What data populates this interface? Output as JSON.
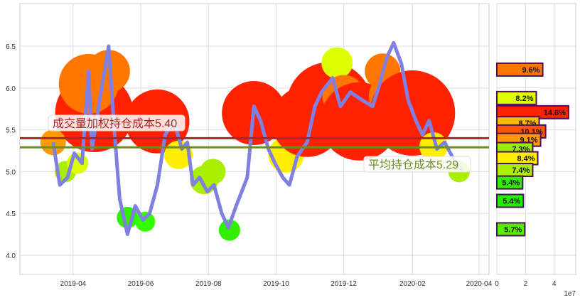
{
  "chart_data": [
    {
      "type": "line",
      "panel": "price",
      "ylim": [
        3.77,
        7.01
      ],
      "xlim": [
        "2019-02-12",
        "2020-04-10"
      ],
      "grid": true,
      "yticks": [
        "4.0",
        "4.5",
        "5.0",
        "5.5",
        "6.0",
        "6.5"
      ],
      "xticks": [
        "2019-04",
        "2019-06",
        "2019-08",
        "2019-10",
        "2019-12",
        "2020-02",
        "2020-04"
      ],
      "line_color": "#8080e0",
      "series": [
        {
          "x": [
            "2019-03-14",
            "2019-03-20",
            "2019-03-27",
            "2019-04-02",
            "2019-04-09",
            "2019-04-15",
            "2019-04-18",
            "2019-04-25",
            "2019-05-03",
            "2019-05-08",
            "2019-05-13",
            "2019-05-20",
            "2019-05-27",
            "2019-06-03",
            "2019-06-09",
            "2019-06-16",
            "2019-06-23",
            "2019-07-01",
            "2019-07-08",
            "2019-07-13",
            "2019-07-18",
            "2019-07-24",
            "2019-07-31",
            "2019-08-06",
            "2019-08-13",
            "2019-08-19",
            "2019-08-26",
            "2019-09-05",
            "2019-09-11",
            "2019-09-17",
            "2019-09-24",
            "2019-09-30",
            "2019-10-07",
            "2019-10-13",
            "2019-10-20",
            "2019-10-29",
            "2019-11-05",
            "2019-11-11",
            "2019-11-21",
            "2019-11-28",
            "2019-12-07",
            "2019-12-17",
            "2019-12-27",
            "2020-01-02",
            "2020-01-09",
            "2020-01-15",
            "2020-01-22",
            "2020-01-28",
            "2020-02-04",
            "2020-02-10",
            "2020-02-16",
            "2020-02-23",
            "2020-03-01",
            "2020-03-11",
            "2020-03-17"
          ],
          "y": [
            5.35,
            4.84,
            4.93,
            5.22,
            5.1,
            6.2,
            5.27,
            5.86,
            6.5,
            5.52,
            4.67,
            4.25,
            4.59,
            4.42,
            4.5,
            4.84,
            5.44,
            5.61,
            5.27,
            5.35,
            4.84,
            4.93,
            4.76,
            4.84,
            4.5,
            4.33,
            4.59,
            4.93,
            5.78,
            5.61,
            5.27,
            5.1,
            4.93,
            4.84,
            5.18,
            5.35,
            5.78,
            5.95,
            6.12,
            5.78,
            5.95,
            5.86,
            5.78,
            6.03,
            6.37,
            6.54,
            6.29,
            5.86,
            5.61,
            5.44,
            5.61,
            5.27,
            5.35,
            5.1,
            5.01
          ]
        }
      ],
      "bubbles": [
        {
          "x": "2019-04-20",
          "y": 5.7,
          "s": 55,
          "color": "#ff2200"
        },
        {
          "x": "2019-04-15",
          "y": 6.05,
          "s": 42,
          "color": "#ff7700"
        },
        {
          "x": "2019-05-03",
          "y": 6.2,
          "s": 30,
          "color": "#ff7700"
        },
        {
          "x": "2019-03-14",
          "y": 5.35,
          "s": 18,
          "color": "#ff9900"
        },
        {
          "x": "2019-03-25",
          "y": 5.0,
          "s": 15,
          "color": "#aaee00"
        },
        {
          "x": "2019-04-05",
          "y": 5.1,
          "s": 15,
          "color": "#ddff00"
        },
        {
          "x": "2019-05-20",
          "y": 4.45,
          "s": 15,
          "color": "#33ee00"
        },
        {
          "x": "2019-06-05",
          "y": 4.4,
          "s": 14,
          "color": "#33ff00"
        },
        {
          "x": "2019-06-16",
          "y": 5.6,
          "s": 45,
          "color": "#ff2200"
        },
        {
          "x": "2019-07-05",
          "y": 5.2,
          "s": 20,
          "color": "#ffee00"
        },
        {
          "x": "2019-07-28",
          "y": 4.9,
          "s": 20,
          "color": "#aaee00"
        },
        {
          "x": "2019-08-05",
          "y": 5.0,
          "s": 18,
          "color": "#aaee00"
        },
        {
          "x": "2019-08-20",
          "y": 4.3,
          "s": 15,
          "color": "#33ee00"
        },
        {
          "x": "2019-09-11",
          "y": 5.7,
          "s": 45,
          "color": "#ff2200"
        },
        {
          "x": "2019-10-10",
          "y": 5.2,
          "s": 25,
          "color": "#ffee00"
        },
        {
          "x": "2019-10-29",
          "y": 5.6,
          "s": 50,
          "color": "#ff2200"
        },
        {
          "x": "2019-11-18",
          "y": 5.8,
          "s": 60,
          "color": "#ff2200"
        },
        {
          "x": "2019-11-25",
          "y": 6.3,
          "s": 22,
          "color": "#ddff00"
        },
        {
          "x": "2019-12-01",
          "y": 5.9,
          "s": 30,
          "color": "#ff7700"
        },
        {
          "x": "2019-12-15",
          "y": 5.6,
          "s": 55,
          "color": "#ff2200"
        },
        {
          "x": "2020-01-05",
          "y": 6.2,
          "s": 25,
          "color": "#ff7700"
        },
        {
          "x": "2020-01-15",
          "y": 5.9,
          "s": 35,
          "color": "#ff7700"
        },
        {
          "x": "2020-02-01",
          "y": 5.7,
          "s": 60,
          "color": "#ff2200"
        },
        {
          "x": "2020-02-20",
          "y": 5.3,
          "s": 20,
          "color": "#ffee00"
        },
        {
          "x": "2020-03-14",
          "y": 5.0,
          "s": 15,
          "color": "#aaee00"
        }
      ],
      "hlines": [
        {
          "y": 5.4,
          "color": "#a52a2a",
          "label": "成交量加权持仓成本5.40"
        },
        {
          "y": 5.29,
          "color": "#6b8e23",
          "label": "平均持仓成本5.29"
        }
      ]
    },
    {
      "type": "bar",
      "orientation": "horizontal",
      "panel": "volume-profile",
      "xlim": [
        0,
        55000000.0
      ],
      "xticks": [
        "0",
        "2",
        "4"
      ],
      "x_offset_label": "1e7",
      "bars": [
        {
          "price": 6.22,
          "value": 32000000.0,
          "label": "9.6%",
          "color": "#ff7700"
        },
        {
          "price": 5.88,
          "value": 27500000.0,
          "label": "8.2%",
          "color": "#ddff00"
        },
        {
          "price": 5.71,
          "value": 50000000.0,
          "label": "14.6%",
          "color": "#ff2200"
        },
        {
          "price": 5.58,
          "value": 29500000.0,
          "label": "8.7%",
          "color": "#ffbb00"
        },
        {
          "price": 5.48,
          "value": 34000000.0,
          "label": "10.1%",
          "color": "#ff5500"
        },
        {
          "price": 5.38,
          "value": 30500000.0,
          "label": "9.1%",
          "color": "#ff9900"
        },
        {
          "price": 5.27,
          "value": 25000000.0,
          "label": "7.3%",
          "color": "#99ee00"
        },
        {
          "price": 5.16,
          "value": 28500000.0,
          "label": "8.4%",
          "color": "#ffee00"
        },
        {
          "price": 5.02,
          "value": 25000000.0,
          "label": "7.4%",
          "color": "#aaee00"
        },
        {
          "price": 4.87,
          "value": 18000000.0,
          "label": "5.4%",
          "color": "#33ee00"
        },
        {
          "price": 4.65,
          "value": 18500000.0,
          "label": "5.4%",
          "color": "#22ee00"
        },
        {
          "price": 4.31,
          "value": 19500000.0,
          "label": "5.7%",
          "color": "#55ee00"
        }
      ]
    }
  ]
}
